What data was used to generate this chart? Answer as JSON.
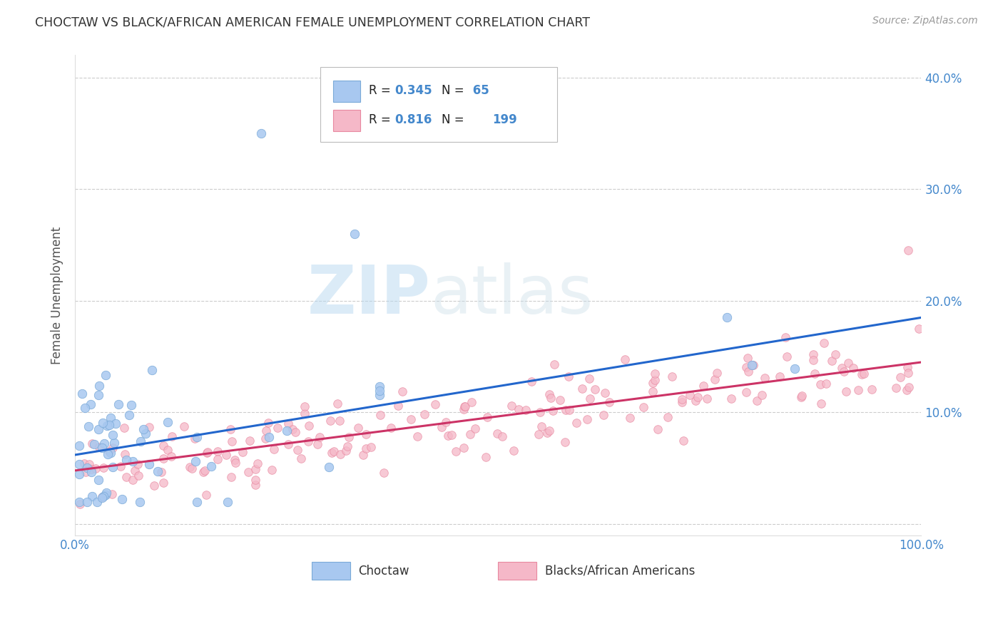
{
  "title": "CHOCTAW VS BLACK/AFRICAN AMERICAN FEMALE UNEMPLOYMENT CORRELATION CHART",
  "source": "Source: ZipAtlas.com",
  "ylabel": "Female Unemployment",
  "xlim": [
    0,
    1.0
  ],
  "ylim": [
    -0.01,
    0.42
  ],
  "choctaw_color": "#a8c8f0",
  "choctaw_edge": "#7aaad8",
  "pink_color": "#f5b8c8",
  "pink_edge": "#e888a0",
  "choctaw_line_color": "#2266cc",
  "pink_line_color": "#cc3366",
  "choctaw_R": 0.345,
  "choctaw_N": 65,
  "pink_R": 0.816,
  "pink_N": 199,
  "watermark_text": "ZIPatlas",
  "watermark_color": "#c8e4f8",
  "background_color": "#ffffff",
  "grid_color": "#cccccc",
  "title_color": "#333333",
  "axis_label_color": "#555555",
  "tick_color": "#4488cc",
  "legend_label1": "Choctaw",
  "legend_label2": "Blacks/African Americans",
  "choctaw_line_x0": 0.0,
  "choctaw_line_y0": 0.062,
  "choctaw_line_x1": 1.0,
  "choctaw_line_y1": 0.185,
  "pink_line_x0": 0.0,
  "pink_line_y0": 0.048,
  "pink_line_x1": 1.0,
  "pink_line_y1": 0.145
}
